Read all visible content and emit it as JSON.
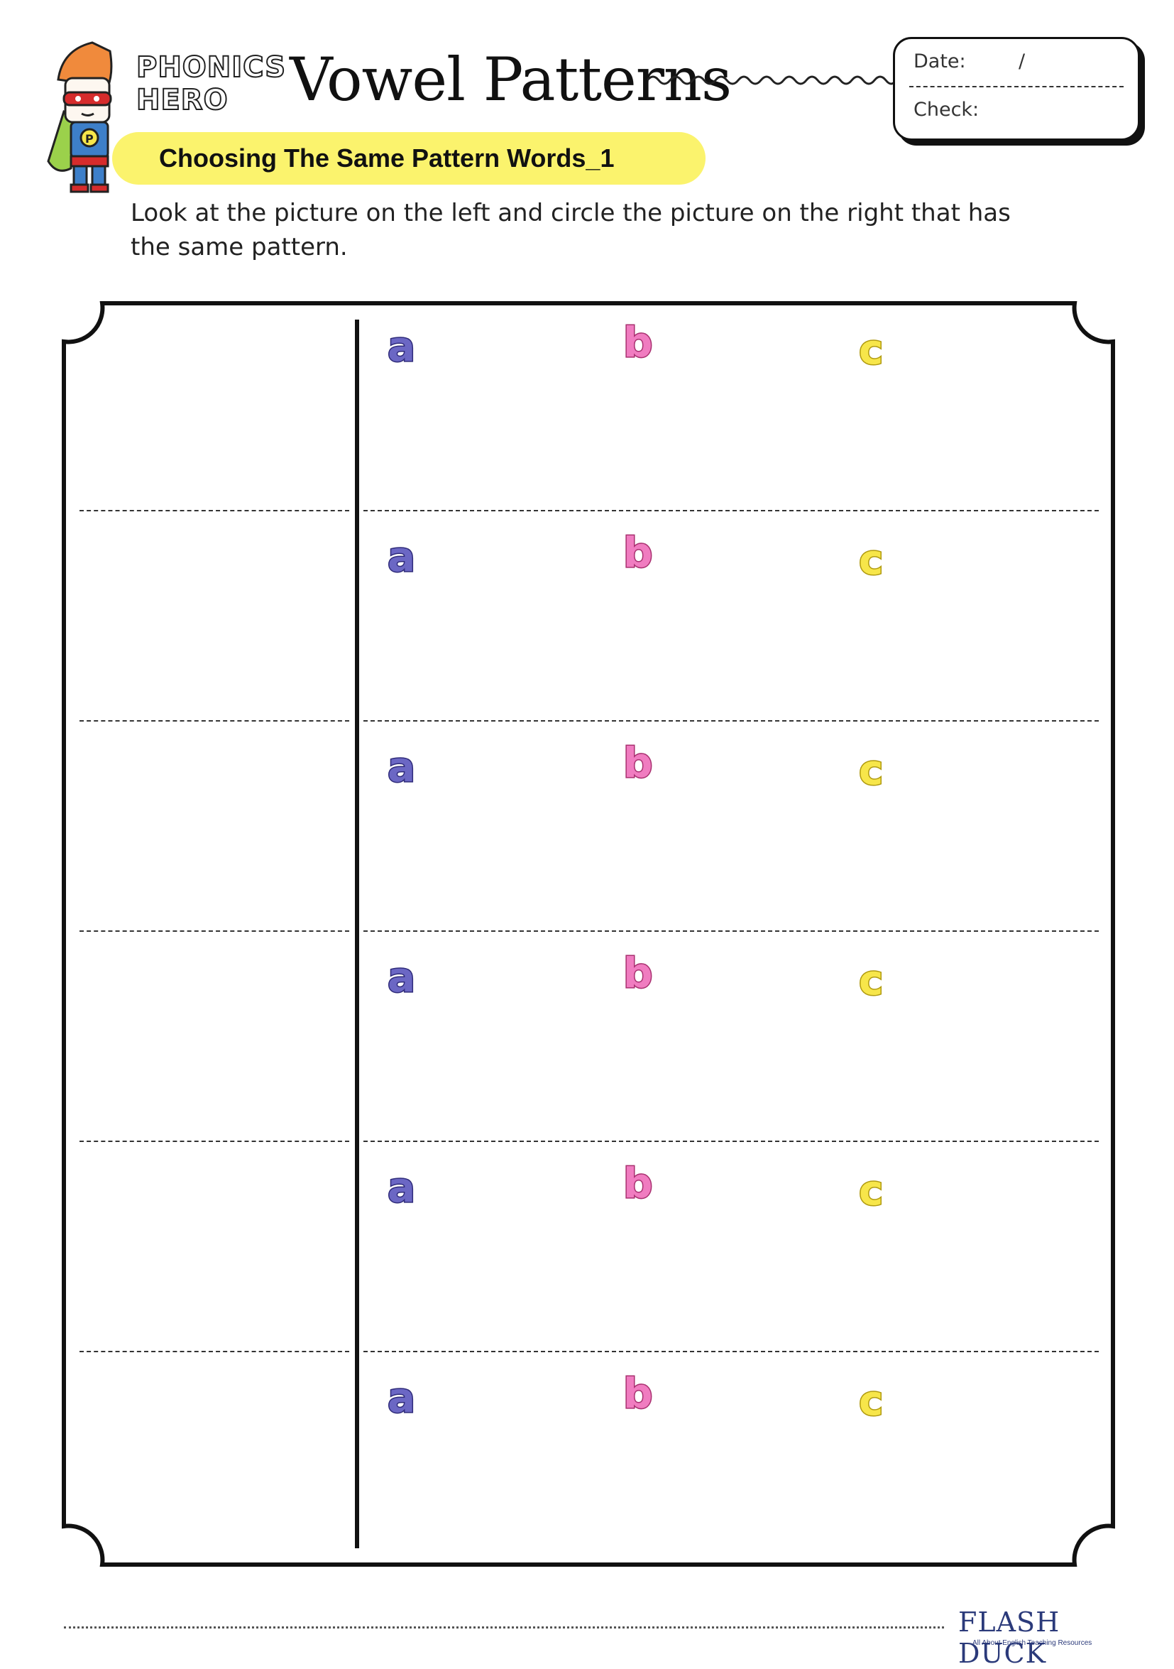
{
  "header": {
    "brand_line1": "PHONICS",
    "brand_line2": "HERO",
    "title": "Vowel Patterns",
    "date_label": "Date:",
    "date_slash": "/",
    "check_label": "Check:"
  },
  "subtitle": "Choosing The Same Pattern Words_1",
  "instructions": "Look at the picture on the left and circle the picture on the right that has the same pattern.",
  "rows": [
    {
      "a": "a",
      "b": "b",
      "c": "c"
    },
    {
      "a": "a",
      "b": "b",
      "c": "c"
    },
    {
      "a": "a",
      "b": "b",
      "c": "c"
    },
    {
      "a": "a",
      "b": "b",
      "c": "c"
    },
    {
      "a": "a",
      "b": "b",
      "c": "c"
    },
    {
      "a": "a",
      "b": "b",
      "c": "c"
    }
  ],
  "option_colors": {
    "a": "#6b67c4",
    "b": "#f07cc0",
    "c": "#f7e64a"
  },
  "footer": {
    "logo_text": "FLASH DUCK",
    "tagline": "All About English Teaching Resources"
  }
}
